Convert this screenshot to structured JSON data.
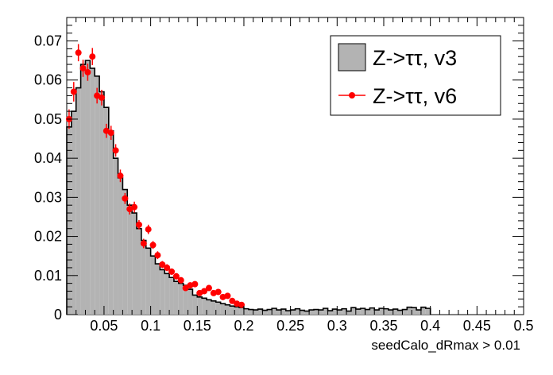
{
  "chart_data": {
    "type": "histogram",
    "title": "",
    "xlabel": "seedCalo_dRmax > 0.01",
    "ylabel": "",
    "xlim": [
      0.01,
      0.5
    ],
    "ylim": [
      0,
      0.076
    ],
    "grid": false,
    "legend_position": "top-right",
    "x_ticks": [
      "0.05",
      "0.1",
      "0.15",
      "0.2",
      "0.25",
      "0.3",
      "0.35",
      "0.4",
      "0.45",
      "0.5"
    ],
    "y_ticks": [
      "0",
      "0.01",
      "0.02",
      "0.03",
      "0.04",
      "0.05",
      "0.06",
      "0.07"
    ],
    "colors": {
      "hist_fill": "#b3b3b3",
      "hist_line": "#000000",
      "marker": "#ff0000"
    },
    "series": [
      {
        "name": "Z->ττ, v3",
        "kind": "filled-histogram",
        "bin_edges": [
          0.01,
          0.015,
          0.02,
          0.025,
          0.03,
          0.035,
          0.04,
          0.045,
          0.05,
          0.055,
          0.06,
          0.065,
          0.07,
          0.075,
          0.08,
          0.085,
          0.09,
          0.095,
          0.1,
          0.105,
          0.11,
          0.115,
          0.12,
          0.125,
          0.13,
          0.135,
          0.14,
          0.145,
          0.15,
          0.155,
          0.16,
          0.165,
          0.17,
          0.175,
          0.18,
          0.185,
          0.19,
          0.195,
          0.2,
          0.205,
          0.21,
          0.215,
          0.22,
          0.225,
          0.23,
          0.235,
          0.24,
          0.245,
          0.25,
          0.255,
          0.26,
          0.265,
          0.27,
          0.275,
          0.28,
          0.285,
          0.29,
          0.295,
          0.3,
          0.305,
          0.31,
          0.315,
          0.32,
          0.325,
          0.33,
          0.335,
          0.34,
          0.345,
          0.35,
          0.355,
          0.36,
          0.365,
          0.37,
          0.375,
          0.38,
          0.385,
          0.39,
          0.395,
          0.4
        ],
        "values": [
          0.048,
          0.052,
          0.058,
          0.064,
          0.065,
          0.063,
          0.061,
          0.057,
          0.053,
          0.047,
          0.04,
          0.035,
          0.032,
          0.028,
          0.026,
          0.022,
          0.019,
          0.017,
          0.015,
          0.013,
          0.0115,
          0.0105,
          0.0095,
          0.0085,
          0.008,
          0.0075,
          0.0065,
          0.005,
          0.0045,
          0.0042,
          0.0038,
          0.0035,
          0.0032,
          0.0028,
          0.0025,
          0.0022,
          0.002,
          0.0018,
          0.0015,
          0.0013,
          0.0012,
          0.0014,
          0.0011,
          0.0013,
          0.0016,
          0.0012,
          0.0014,
          0.001,
          0.0012,
          0.0015,
          0.0011,
          0.0009,
          0.0012,
          0.0013,
          0.0012,
          0.0016,
          0.001,
          0.0014,
          0.0012,
          0.0015,
          0.0009,
          0.0018,
          0.0014,
          0.0016,
          0.0013,
          0.0017,
          0.0012,
          0.0016,
          0.0015,
          0.0012,
          0.0014,
          0.0011,
          0.0013,
          0.0019,
          0.0018,
          0.0012,
          0.0019,
          0.0016
        ]
      },
      {
        "name": "Z->ττ, v6",
        "kind": "markers-with-errors",
        "x": [
          0.0125,
          0.0175,
          0.0225,
          0.0275,
          0.0325,
          0.0375,
          0.0425,
          0.0475,
          0.0525,
          0.0575,
          0.0625,
          0.0675,
          0.0725,
          0.0775,
          0.0825,
          0.0875,
          0.0925,
          0.0975,
          0.1025,
          0.1075,
          0.1125,
          0.1175,
          0.1225,
          0.1275,
          0.1325,
          0.1375,
          0.1425,
          0.1475,
          0.1525,
          0.1575,
          0.1625,
          0.1675,
          0.1725,
          0.1775,
          0.1825,
          0.1875,
          0.1925,
          0.1975
        ],
        "y": [
          0.05,
          0.057,
          0.067,
          0.063,
          0.062,
          0.066,
          0.056,
          0.0555,
          0.047,
          0.0465,
          0.042,
          0.0355,
          0.0297,
          0.027,
          0.0275,
          0.023,
          0.0182,
          0.0218,
          0.0178,
          0.0152,
          0.0128,
          0.012,
          0.011,
          0.0098,
          0.0088,
          0.0068,
          0.0075,
          0.0078,
          0.0055,
          0.006,
          0.0068,
          0.0055,
          0.0058,
          0.0045,
          0.0048,
          0.0035,
          0.0028,
          0.0025
        ],
        "err": [
          0.0025,
          0.0025,
          0.0022,
          0.0022,
          0.0022,
          0.0022,
          0.002,
          0.002,
          0.0018,
          0.0018,
          0.0016,
          0.0016,
          0.0014,
          0.0014,
          0.0014,
          0.0012,
          0.0012,
          0.0012,
          0.001,
          0.001,
          0.0009,
          0.0009,
          0.0008,
          0.0008,
          0.0008,
          0.0007,
          0.0007,
          0.0007,
          0.0006,
          0.0006,
          0.0006,
          0.0006,
          0.0006,
          0.0005,
          0.0005,
          0.0005,
          0.0005,
          0.0005
        ]
      }
    ]
  }
}
